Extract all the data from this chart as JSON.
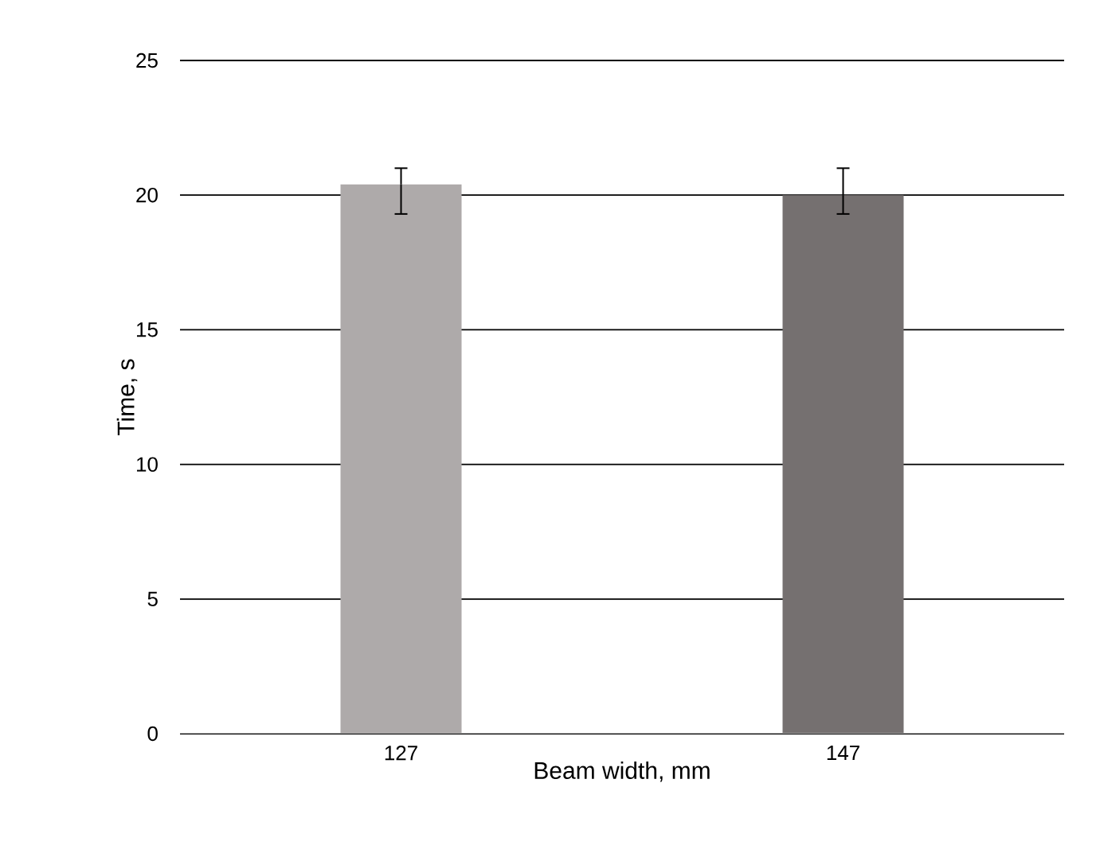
{
  "chart_data": {
    "type": "bar",
    "xlabel": "Beam width, mm",
    "ylabel": "Time, s",
    "categories": [
      "127",
      "147"
    ],
    "values": [
      20.4,
      20.0
    ],
    "colors": [
      "#aeaaaa",
      "#757070"
    ],
    "errors": [
      [
        19.3,
        21.0
      ],
      [
        19.3,
        21.0
      ]
    ],
    "ylim": [
      0,
      25
    ],
    "yticks": [
      0,
      5,
      10,
      15,
      20,
      25
    ],
    "grid": "y"
  }
}
